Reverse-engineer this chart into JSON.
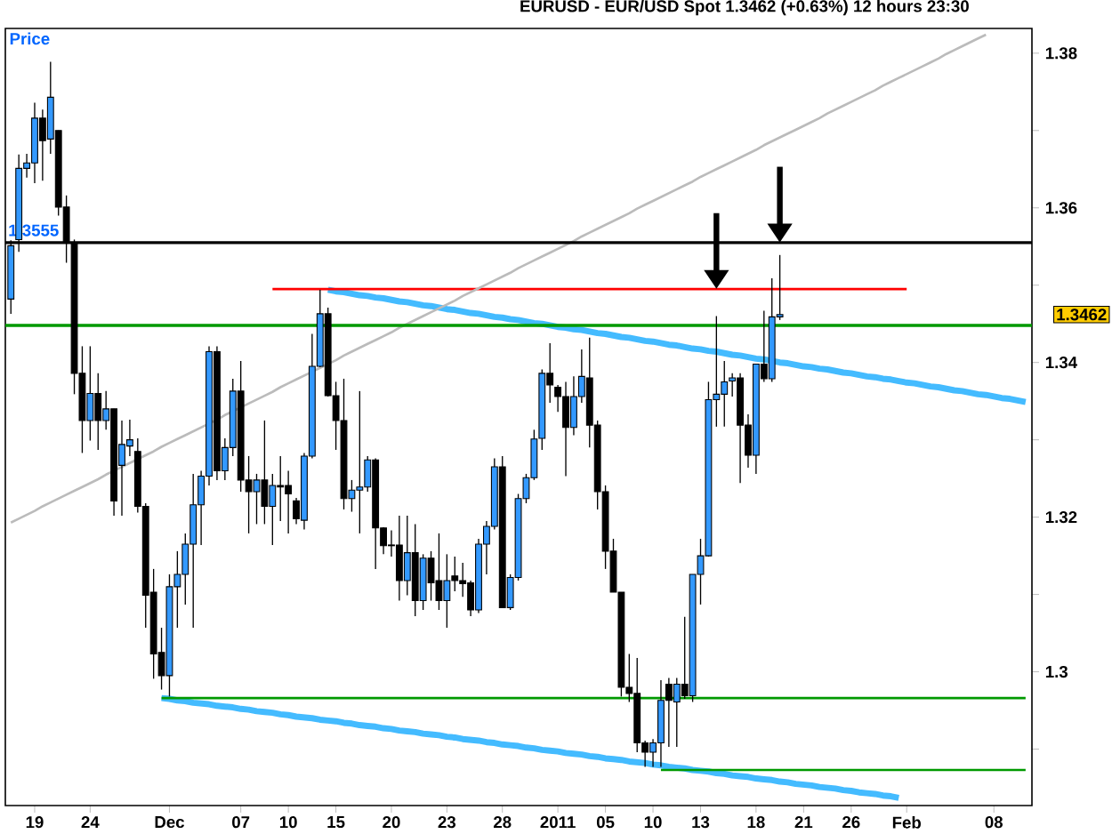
{
  "chart_data": {
    "type": "candlestick",
    "title": "EURUSD - EUR/USD Spot 1.3462 (+0.63%) 12 hours 23:30",
    "categories": [
      null,
      null,
      null,
      "19",
      null,
      null,
      null,
      null,
      null,
      null,
      "24",
      null,
      null,
      null,
      null,
      null,
      null,
      null,
      null,
      null,
      "Dec",
      null,
      null,
      null,
      null,
      null,
      null,
      null,
      null,
      "07",
      null,
      null,
      null,
      null,
      null,
      "10",
      null,
      null,
      null,
      null,
      null,
      "15",
      null,
      null,
      null,
      null,
      null,
      null,
      "20",
      null,
      null,
      null,
      null,
      null,
      null,
      "23",
      null,
      null,
      null,
      null,
      null,
      null,
      "28",
      null,
      null,
      null,
      null,
      null,
      null,
      "2011",
      null,
      null,
      null,
      null,
      null,
      "05",
      null,
      null,
      null,
      null,
      null,
      "10",
      null,
      null,
      null,
      null,
      null,
      "13",
      null,
      null,
      null,
      null,
      null,
      null,
      "18",
      null,
      null,
      null,
      null,
      null,
      "21",
      null,
      null,
      null,
      null,
      null,
      "26",
      null,
      null,
      null,
      null,
      null,
      null,
      "Feb",
      null,
      null,
      null,
      null,
      null,
      null,
      null,
      null,
      null,
      null,
      "08",
      null,
      null,
      null,
      null
    ],
    "ohlc": [
      [
        1.3482,
        1.3558,
        1.3463,
        1.3551
      ],
      [
        1.3559,
        1.3669,
        1.3543,
        1.3651
      ],
      [
        1.3651,
        1.367,
        1.3639,
        1.3658
      ],
      [
        1.3658,
        1.3736,
        1.3632,
        1.3716
      ],
      [
        1.3716,
        1.3727,
        1.3635,
        1.3687
      ],
      [
        1.3689,
        1.3789,
        1.367,
        1.3743
      ],
      [
        1.37,
        1.37,
        1.359,
        1.3601
      ],
      [
        1.3601,
        1.3616,
        1.3529,
        1.3555
      ],
      [
        1.3555,
        1.3559,
        1.3359,
        1.3386
      ],
      [
        1.3386,
        1.3421,
        1.3283,
        1.3325
      ],
      [
        1.3325,
        1.3421,
        1.3299,
        1.336
      ],
      [
        1.336,
        1.3386,
        1.3287,
        1.3325
      ],
      [
        1.3325,
        1.3363,
        1.3313,
        1.334
      ],
      [
        1.334,
        1.334,
        1.3202,
        1.3221
      ],
      [
        1.3267,
        1.3325,
        1.3202,
        1.3294
      ],
      [
        1.3292,
        1.3326,
        1.3279,
        1.33
      ],
      [
        1.3285,
        1.3302,
        1.3206,
        1.3214
      ],
      [
        1.3214,
        1.3218,
        1.3057,
        1.3099
      ],
      [
        1.3103,
        1.3133,
        1.2991,
        1.3023
      ],
      [
        1.3025,
        1.3057,
        1.2977,
        1.2995
      ],
      [
        1.2995,
        1.3126,
        1.2968,
        1.311
      ],
      [
        1.311,
        1.3156,
        1.3057,
        1.3126
      ],
      [
        1.3126,
        1.3179,
        1.3087,
        1.3165
      ],
      [
        1.3165,
        1.3256,
        1.3057,
        1.3216
      ],
      [
        1.3216,
        1.326,
        1.3164,
        1.3253
      ],
      [
        1.3253,
        1.3421,
        1.3241,
        1.3414
      ],
      [
        1.3414,
        1.3421,
        1.3248,
        1.326
      ],
      [
        1.326,
        1.3302,
        1.3248,
        1.329
      ],
      [
        1.329,
        1.3379,
        1.3279,
        1.3363
      ],
      [
        1.3363,
        1.3402,
        1.3233,
        1.3248
      ],
      [
        1.3248,
        1.3279,
        1.3179,
        1.3233
      ],
      [
        1.3233,
        1.3256,
        1.3191,
        1.3248
      ],
      [
        1.3248,
        1.3325,
        1.3191,
        1.3214
      ],
      [
        1.3214,
        1.3256,
        1.3164,
        1.3241
      ],
      [
        1.3241,
        1.3279,
        1.3195,
        1.3239
      ],
      [
        1.3241,
        1.326,
        1.3179,
        1.323
      ],
      [
        1.3221,
        1.3225,
        1.3191,
        1.3198
      ],
      [
        1.3196,
        1.3283,
        1.3184,
        1.3279
      ],
      [
        1.3279,
        1.3437,
        1.3276,
        1.3395
      ],
      [
        1.3395,
        1.3494,
        1.3394,
        1.3463
      ],
      [
        1.3463,
        1.3471,
        1.3356,
        1.3357
      ],
      [
        1.3357,
        1.3375,
        1.3287,
        1.3325
      ],
      [
        1.3325,
        1.3379,
        1.321,
        1.3224
      ],
      [
        1.3224,
        1.3248,
        1.3207,
        1.3235
      ],
      [
        1.3235,
        1.3363,
        1.3179,
        1.3239
      ],
      [
        1.3239,
        1.3279,
        1.3233,
        1.3274
      ],
      [
        1.3274,
        1.3276,
        1.3133,
        1.3186
      ],
      [
        1.3186,
        1.3187,
        1.3152,
        1.3163
      ],
      [
        1.3164,
        1.3183,
        1.3149,
        1.3163
      ],
      [
        1.3164,
        1.3202,
        1.3092,
        1.3118
      ],
      [
        1.3118,
        1.3202,
        1.3099,
        1.3154
      ],
      [
        1.3154,
        1.3191,
        1.3072,
        1.3092
      ],
      [
        1.3092,
        1.3152,
        1.308,
        1.3147
      ],
      [
        1.3147,
        1.3156,
        1.3092,
        1.3115
      ],
      [
        1.3118,
        1.3179,
        1.308,
        1.3092
      ],
      [
        1.3092,
        1.3152,
        1.3057,
        1.3118
      ],
      [
        1.3124,
        1.3149,
        1.3104,
        1.3118
      ],
      [
        1.3118,
        1.3141,
        1.3097,
        1.3114
      ],
      [
        1.3115,
        1.3118,
        1.3072,
        1.308
      ],
      [
        1.308,
        1.3172,
        1.3076,
        1.3165
      ],
      [
        1.3165,
        1.3195,
        1.3126,
        1.3188
      ],
      [
        1.3188,
        1.3276,
        1.3184,
        1.3265
      ],
      [
        1.3265,
        1.3279,
        1.3083,
        1.3083
      ],
      [
        1.3083,
        1.3126,
        1.308,
        1.3122
      ],
      [
        1.3122,
        1.323,
        1.3118,
        1.3224
      ],
      [
        1.3224,
        1.3256,
        1.3218,
        1.3251
      ],
      [
        1.3251,
        1.3313,
        1.3248,
        1.3301
      ],
      [
        1.3302,
        1.3391,
        1.3287,
        1.3386
      ],
      [
        1.3386,
        1.3425,
        1.3348,
        1.3371
      ],
      [
        1.3368,
        1.3371,
        1.3336,
        1.3356
      ],
      [
        1.3356,
        1.3375,
        1.3253,
        1.3316
      ],
      [
        1.3316,
        1.3382,
        1.3306,
        1.3356
      ],
      [
        1.3356,
        1.3417,
        1.3348,
        1.3382
      ],
      [
        1.338,
        1.3432,
        1.329,
        1.3319
      ],
      [
        1.3319,
        1.3325,
        1.321,
        1.3233
      ],
      [
        1.3233,
        1.3241,
        1.3133,
        1.3156
      ],
      [
        1.3156,
        1.3172,
        1.3103,
        1.3103
      ],
      [
        1.3103,
        1.3103,
        1.2968,
        1.298
      ],
      [
        1.298,
        1.3023,
        1.2961,
        1.2972
      ],
      [
        1.2972,
        1.3018,
        1.2896,
        1.2908
      ],
      [
        1.2908,
        1.2911,
        1.2877,
        1.2896
      ],
      [
        1.2896,
        1.2913,
        1.2877,
        1.2908
      ],
      [
        1.2908,
        1.2989,
        1.2877,
        1.2963
      ],
      [
        1.2984,
        1.2992,
        1.2903,
        1.2963
      ],
      [
        1.2961,
        1.2992,
        1.2903,
        1.2984
      ],
      [
        1.2984,
        1.3071,
        1.2965,
        1.2969
      ],
      [
        1.2969,
        1.3126,
        1.2961,
        1.3126
      ],
      [
        1.3126,
        1.3172,
        1.3087,
        1.315
      ],
      [
        1.315,
        1.3375,
        1.3149,
        1.3352
      ],
      [
        1.3352,
        1.346,
        1.3317,
        1.3359
      ],
      [
        1.3359,
        1.3402,
        1.3317,
        1.3375
      ],
      [
        1.3376,
        1.3386,
        1.3356,
        1.338
      ],
      [
        1.338,
        1.3386,
        1.3244,
        1.3319
      ],
      [
        1.3319,
        1.3333,
        1.3264,
        1.328
      ],
      [
        1.328,
        1.3398,
        1.3256,
        1.3398
      ],
      [
        1.3398,
        1.3467,
        1.3375,
        1.3379
      ],
      [
        1.3379,
        1.3509,
        1.3375,
        1.3459
      ],
      [
        1.3459,
        1.3539,
        1.3455,
        1.3462
      ],
      null,
      null,
      null,
      null,
      null,
      null,
      null,
      null,
      null,
      null,
      null,
      null,
      null,
      null,
      null,
      null,
      null,
      null,
      null,
      null,
      null,
      null,
      null,
      null,
      null,
      null,
      null,
      null,
      null,
      null,
      null
    ],
    "colors": [
      "#3399ff",
      "#3399ff",
      "#3399ff",
      "#3399ff",
      "#000000",
      "#3399ff",
      "#000000",
      "#000000",
      "#000000",
      "#000000",
      "#3399ff",
      "#000000",
      "#3399ff",
      "#000000",
      "#3399ff",
      "#3399ff",
      "#000000",
      "#000000",
      "#000000",
      "#000000",
      "#3399ff",
      "#3399ff",
      "#3399ff",
      "#3399ff",
      "#3399ff",
      "#3399ff",
      "#000000",
      "#3399ff",
      "#3399ff",
      "#000000",
      "#000000",
      "#3399ff",
      "#000000",
      "#3399ff",
      "#000000",
      "#000000",
      "#000000",
      "#3399ff",
      "#3399ff",
      "#3399ff",
      "#000000",
      "#000000",
      "#000000",
      "#3399ff",
      "#3399ff",
      "#3399ff",
      "#000000",
      "#000000",
      "#000000",
      "#000000",
      "#3399ff",
      "#000000",
      "#3399ff",
      "#000000",
      "#000000",
      "#3399ff",
      "#000000",
      "#000000",
      "#000000",
      "#3399ff",
      "#3399ff",
      "#3399ff",
      "#000000",
      "#3399ff",
      "#3399ff",
      "#3399ff",
      "#3399ff",
      "#3399ff",
      "#000000",
      "#000000",
      "#000000",
      "#3399ff",
      "#3399ff",
      "#000000",
      "#000000",
      "#000000",
      "#000000",
      "#000000",
      "#000000",
      "#000000",
      "#000000",
      "#3399ff",
      "#3399ff",
      "#000000",
      "#3399ff",
      "#000000",
      "#3399ff",
      "#3399ff",
      "#3399ff",
      "#3399ff",
      "#3399ff",
      "#3399ff",
      "#000000",
      "#000000",
      "#3399ff",
      "#000000",
      "#3399ff",
      "#3399ff",
      null,
      null,
      null,
      null,
      null,
      null,
      null,
      null,
      null,
      null,
      null,
      null,
      null,
      null,
      null,
      null,
      null,
      null,
      null,
      null,
      null,
      null,
      null,
      null,
      null,
      null,
      null,
      null,
      null,
      null,
      null
    ],
    "series": [
      {
        "type": "line",
        "color": "#44bbff",
        "values": [
          null,
          null,
          null,
          null,
          null,
          null,
          null,
          null,
          null,
          null,
          null,
          null,
          null,
          null,
          null,
          null,
          null,
          null,
          null,
          null,
          null,
          null,
          null,
          null,
          null,
          null,
          null,
          null,
          null,
          null,
          null,
          null,
          null,
          null,
          null,
          null,
          null,
          null,
          null,
          null,
          1.3494,
          1.3492,
          1.3491,
          1.3489,
          1.3487,
          1.3486,
          1.3484,
          1.3483,
          1.3481,
          1.3479,
          1.3478,
          1.3476,
          1.3474,
          1.3473,
          1.3471,
          1.3469,
          1.3468,
          1.3466,
          1.3464,
          1.3463,
          1.3461,
          1.3459,
          1.3458,
          1.3456,
          1.3455,
          1.3453,
          1.3451,
          1.345,
          1.3448,
          1.3446,
          1.3445,
          1.3443,
          1.3442,
          1.344,
          1.3438,
          1.3437,
          1.3435,
          1.3433,
          1.3432,
          1.343,
          1.3428,
          1.3427,
          1.3425,
          1.3423,
          1.3422,
          1.342,
          1.3418,
          1.3417,
          1.3415,
          1.3414,
          1.3412,
          1.341,
          1.3409,
          1.3407,
          1.3405,
          1.3404,
          1.3402,
          1.34,
          1.3399,
          1.3397,
          1.3395,
          1.3394,
          1.3392,
          1.3391,
          1.3389,
          1.3387,
          1.3386,
          1.3384,
          1.3382,
          1.3381,
          1.3379,
          1.3378,
          1.3376,
          1.3374,
          1.3373,
          1.3371,
          1.3369,
          1.3368,
          1.3366,
          1.3364,
          1.3363,
          1.3361,
          1.3359,
          1.3358,
          1.3356,
          1.3354,
          1.3353,
          1.3351,
          1.3349
        ]
      },
      {
        "type": "line",
        "color": "#44bbff",
        "values": [
          null,
          null,
          null,
          null,
          null,
          null,
          null,
          null,
          null,
          null,
          null,
          null,
          null,
          null,
          null,
          null,
          null,
          null,
          null,
          1.2966,
          1.2965,
          1.2963,
          1.2962,
          1.296,
          1.2959,
          1.2958,
          1.2956,
          1.2955,
          1.2954,
          1.2952,
          1.2951,
          1.2949,
          1.2948,
          1.2947,
          1.2945,
          1.2944,
          1.2942,
          1.2941,
          1.294,
          1.2938,
          1.2937,
          1.2936,
          1.2934,
          1.2933,
          1.2931,
          1.293,
          1.2929,
          1.2927,
          1.2926,
          1.2924,
          1.2923,
          1.2922,
          1.292,
          1.2919,
          1.2918,
          1.2916,
          1.2915,
          1.2913,
          1.2912,
          1.2911,
          1.2909,
          1.2908,
          1.2906,
          1.2905,
          1.2904,
          1.2902,
          1.2901,
          1.2899,
          1.2898,
          1.2897,
          1.2895,
          1.2894,
          1.2893,
          1.2891,
          1.289,
          1.2888,
          1.2887,
          1.2886,
          1.2884,
          1.2883,
          1.2882,
          1.288,
          1.2879,
          1.2877,
          1.2876,
          1.2875,
          1.2873,
          1.2872,
          1.2871,
          1.2869,
          1.2868,
          1.2866,
          1.2865,
          1.2864,
          1.2862,
          1.2861,
          1.286,
          1.2858,
          1.2857,
          1.2855,
          1.2854,
          1.2853,
          1.2851,
          1.285,
          1.2849,
          1.2847,
          1.2846,
          1.2844,
          1.2843,
          1.2842,
          1.284,
          1.2839,
          1.2837,
          null,
          null,
          null,
          null,
          null,
          null,
          null,
          null,
          null,
          null,
          null,
          null,
          null,
          null,
          null,
          null
        ]
      },
      {
        "type": "line",
        "color": "#ff0000",
        "values": [
          null,
          null,
          null,
          null,
          null,
          null,
          null,
          null,
          null,
          null,
          null,
          null,
          null,
          null,
          null,
          null,
          null,
          null,
          null,
          null,
          null,
          null,
          null,
          null,
          null,
          null,
          null,
          null,
          null,
          null,
          null,
          null,
          null,
          1.3495,
          1.3495,
          1.3495,
          1.3495,
          1.3495,
          1.3495,
          1.3495,
          1.3495,
          1.3495,
          1.3495,
          1.3495,
          1.3495,
          1.3495,
          1.3495,
          1.3495,
          1.3495,
          1.3495,
          1.3495,
          1.3495,
          1.3495,
          1.3495,
          1.3495,
          1.3495,
          1.3495,
          1.3495,
          1.3495,
          1.3495,
          1.3495,
          1.3495,
          1.3495,
          1.3495,
          1.3495,
          1.3495,
          1.3495,
          1.3495,
          1.3495,
          1.3495,
          1.3495,
          1.3495,
          1.3495,
          1.3495,
          1.3495,
          1.3495,
          1.3495,
          1.3495,
          1.3495,
          1.3495,
          1.3495,
          1.3495,
          1.3495,
          1.3495,
          1.3495,
          1.3495,
          1.3495,
          1.3495,
          1.3495,
          1.3495,
          1.3495,
          1.3495,
          1.3495,
          1.3495,
          1.3495,
          1.3495,
          1.3495,
          1.3495,
          1.3495,
          1.3495,
          1.3495,
          1.3495,
          1.3495,
          1.3495,
          1.3495,
          1.3495,
          1.3495,
          1.3495,
          1.3495,
          1.3495,
          1.3495,
          1.3495,
          1.3495,
          1.3495,
          null,
          null,
          null,
          null,
          null,
          null,
          null,
          null,
          null,
          null,
          null,
          null,
          null,
          null,
          null
        ]
      },
      {
        "type": "line",
        "color": "#009900",
        "values": [
          null,
          null,
          null,
          null,
          null,
          null,
          null,
          null,
          null,
          null,
          null,
          null,
          null,
          null,
          null,
          null,
          null,
          null,
          null,
          1.2966,
          1.2966,
          1.2966,
          1.2966,
          1.2966,
          1.2966,
          1.2966,
          1.2966,
          1.2966,
          1.2966,
          1.2966,
          1.2966,
          1.2966,
          1.2966,
          1.2966,
          1.2966,
          1.2966,
          1.2966,
          1.2966,
          1.2966,
          1.2966,
          1.2966,
          1.2966,
          1.2966,
          1.2966,
          1.2966,
          1.2966,
          1.2966,
          1.2966,
          1.2966,
          1.2966,
          1.2966,
          1.2966,
          1.2966,
          1.2966,
          1.2966,
          1.2966,
          1.2966,
          1.2966,
          1.2966,
          1.2966,
          1.2966,
          1.2966,
          1.2966,
          1.2966,
          1.2966,
          1.2966,
          1.2966,
          1.2966,
          1.2966,
          1.2966,
          1.2966,
          1.2966,
          1.2966,
          1.2966,
          1.2966,
          1.2966,
          1.2966,
          1.2966,
          1.2966,
          1.2966,
          1.2966,
          1.2966,
          1.2966,
          1.2966,
          1.2966,
          1.2966,
          1.2966,
          1.2966,
          1.2966,
          1.2966,
          1.2966,
          1.2966,
          1.2966,
          1.2966,
          1.2966,
          1.2966,
          1.2966,
          1.2966,
          1.2966,
          1.2966,
          1.2966,
          1.2966,
          1.2966,
          1.2966,
          1.2966,
          1.2966,
          1.2966,
          1.2966,
          1.2966,
          1.2966,
          1.2966,
          1.2966,
          1.2966,
          1.2966,
          1.2966,
          1.2966,
          1.2966,
          1.2966,
          1.2966,
          1.2966,
          1.2966,
          1.2966,
          1.2966,
          1.2966,
          1.2966,
          1.2966,
          1.2966,
          1.2966,
          1.2966
        ]
      },
      {
        "type": "line",
        "color": "#009900",
        "values": [
          null,
          null,
          null,
          null,
          null,
          null,
          null,
          null,
          null,
          null,
          null,
          null,
          null,
          null,
          null,
          null,
          null,
          null,
          null,
          null,
          null,
          null,
          null,
          null,
          null,
          null,
          null,
          null,
          null,
          null,
          null,
          null,
          null,
          null,
          null,
          null,
          null,
          null,
          null,
          null,
          null,
          null,
          null,
          null,
          null,
          null,
          null,
          null,
          null,
          null,
          null,
          null,
          null,
          null,
          null,
          null,
          null,
          null,
          null,
          null,
          null,
          null,
          null,
          null,
          null,
          null,
          null,
          null,
          null,
          null,
          null,
          null,
          null,
          null,
          null,
          null,
          null,
          null,
          null,
          null,
          null,
          null,
          1.2873,
          1.2873,
          1.2873,
          1.2873,
          1.2873,
          1.2873,
          1.2873,
          1.2873,
          1.2873,
          1.2873,
          1.2873,
          1.2873,
          1.2873,
          1.2873,
          1.2873,
          1.2873,
          1.2873,
          1.2873,
          1.2873,
          1.2873,
          1.2873,
          1.2873,
          1.2873,
          1.2873,
          1.2873,
          1.2873,
          1.2873,
          1.2873,
          1.2873,
          1.2873,
          1.2873,
          1.2873,
          1.2873,
          1.2873,
          1.2873,
          1.2873,
          1.2873,
          1.2873,
          1.2873,
          1.2873,
          1.2873,
          1.2873,
          1.2873,
          1.2873,
          1.2873,
          1.2873,
          1.2873
        ]
      },
      {
        "type": "line",
        "color": "#bbbbbb",
        "values": [
          1.3193,
          1.3198,
          1.3203,
          1.3208,
          1.3214,
          1.3219,
          1.3224,
          1.3229,
          1.3234,
          1.3239,
          1.3244,
          1.3249,
          1.3255,
          1.326,
          1.3265,
          1.327,
          1.3275,
          1.328,
          1.3285,
          1.3291,
          1.3296,
          1.3301,
          1.3306,
          1.3311,
          1.3316,
          1.3321,
          1.3326,
          1.3332,
          1.3337,
          1.3342,
          1.3347,
          1.3352,
          1.3357,
          1.3362,
          1.3368,
          1.3373,
          1.3378,
          1.3383,
          1.3388,
          1.3393,
          1.3398,
          1.3403,
          1.3409,
          1.3414,
          1.3419,
          1.3424,
          1.3429,
          1.3434,
          1.3439,
          1.3445,
          1.345,
          1.3455,
          1.346,
          1.3465,
          1.347,
          1.3475,
          1.348,
          1.3486,
          1.3491,
          1.3496,
          1.3501,
          1.3506,
          1.3511,
          1.3516,
          1.3522,
          1.3527,
          1.3532,
          1.3537,
          1.3542,
          1.3547,
          1.3552,
          1.3557,
          1.3563,
          1.3568,
          1.3573,
          1.3578,
          1.3583,
          1.3588,
          1.3593,
          1.3599,
          1.3604,
          1.3609,
          1.3614,
          1.3619,
          1.3624,
          1.3629,
          1.3634,
          1.364,
          1.3645,
          1.365,
          1.3655,
          1.366,
          1.3665,
          1.367,
          1.3675,
          1.3681,
          1.3686,
          1.3691,
          1.3696,
          1.3701,
          1.3706,
          1.3711,
          1.3716,
          1.3722,
          1.3727,
          1.3732,
          1.3737,
          1.3742,
          1.3747,
          1.3752,
          1.3758,
          1.3763,
          1.3768,
          1.3773,
          1.3778,
          1.3783,
          1.3788,
          1.3793,
          1.3799,
          1.3804,
          1.3809,
          1.3814,
          1.3819,
          1.3824,
          null,
          null,
          null,
          null,
          null
        ]
      }
    ],
    "ref_lines": [
      {
        "axis": "y",
        "value": 1.3555,
        "label": "1.3555",
        "color": "#000000"
      },
      {
        "axis": "y",
        "value": 1.3448,
        "color": "#009900"
      }
    ],
    "annotations": [
      "Price",
      "1.3462"
    ],
    "ylim": [
      1.2827,
      1.3832
    ],
    "yticks": [
      1.38,
      {
        "value": 1.37,
        "label": null
      },
      1.36,
      {
        "value": 1.35,
        "label": null
      },
      1.34,
      {
        "value": 1.33,
        "label": null
      },
      1.32,
      {
        "value": 1.31,
        "label": null
      },
      1.3,
      {
        "value": 1.29,
        "label": null
      }
    ]
  }
}
